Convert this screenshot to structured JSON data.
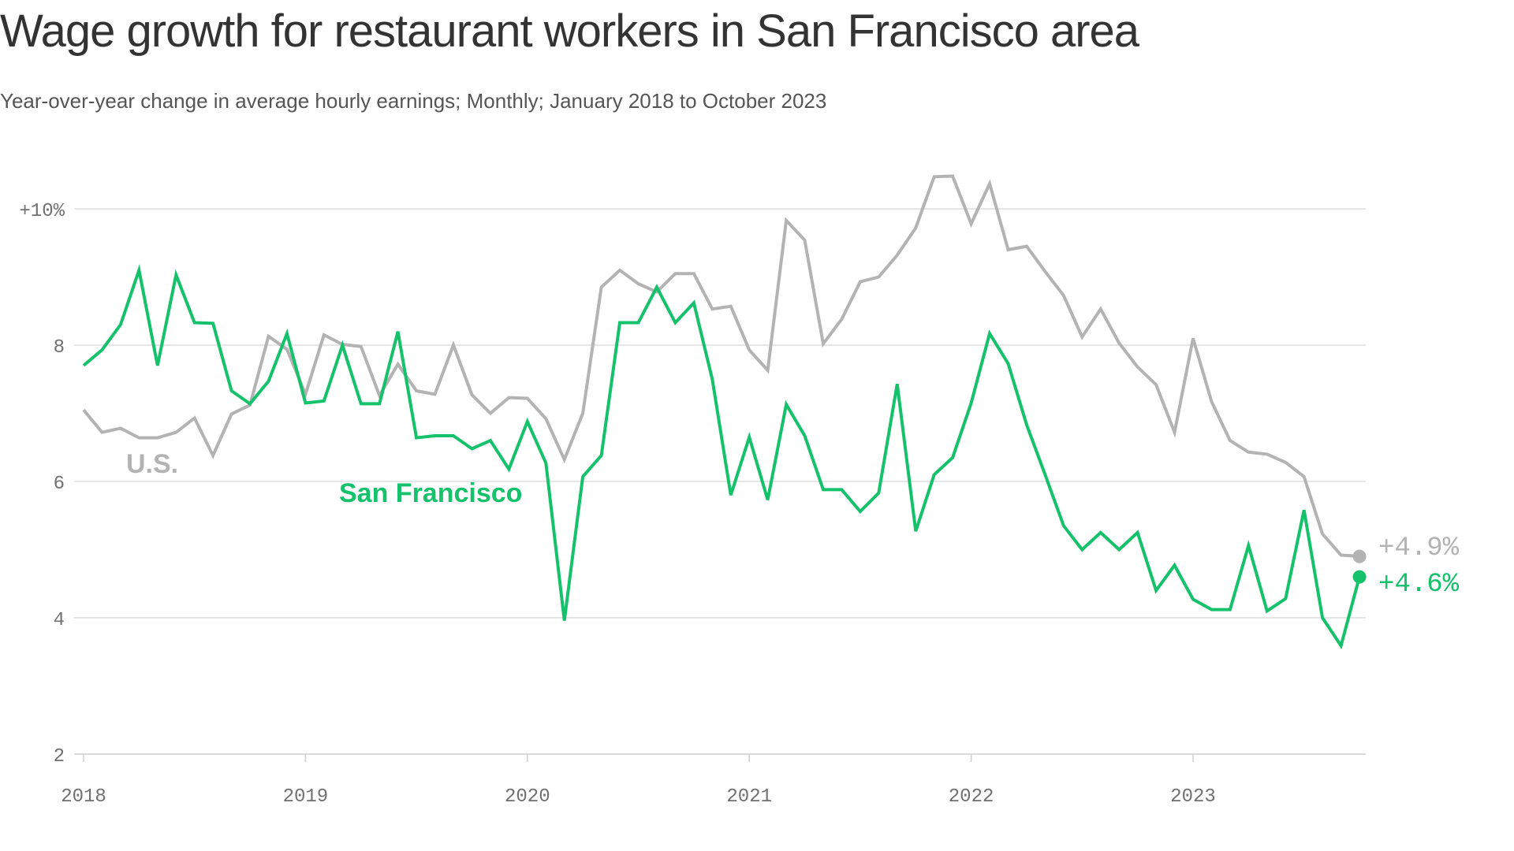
{
  "header": {
    "title": "Wage growth for restaurant workers in San Francisco area",
    "subtitle": "Year-over-year change in average hourly earnings; Monthly; January 2018 to October 2023"
  },
  "colors": {
    "us": "#b3b3b3",
    "sf": "#15c26b",
    "grid": "#dddddd",
    "axis_text": "#707070",
    "title": "#333333",
    "subtitle": "#555555"
  },
  "chart_data": {
    "type": "line",
    "title": "Wage growth for restaurant workers in San Francisco area",
    "subtitle": "Year-over-year change in average hourly earnings; Monthly; January 2018 to October 2023",
    "xlabel": "",
    "ylabel": "",
    "x_start": "2018-01",
    "x_end": "2023-10",
    "x_ticks": [
      "2018",
      "2019",
      "2020",
      "2021",
      "2022",
      "2023"
    ],
    "y_ticks": [
      "2",
      "4",
      "6",
      "8",
      "+10%"
    ],
    "y_tick_values": [
      2,
      4,
      6,
      8,
      10
    ],
    "ylim": [
      2,
      10.5
    ],
    "grid": "horizontal",
    "series": [
      {
        "name": "U.S.",
        "end_label": "+4.9%",
        "values": [
          7.05,
          6.72,
          6.78,
          6.64,
          6.64,
          6.72,
          6.93,
          6.38,
          6.99,
          7.12,
          8.13,
          7.94,
          7.28,
          8.15,
          8.01,
          7.98,
          7.26,
          7.72,
          7.33,
          7.28,
          8.0,
          7.27,
          7.0,
          7.23,
          7.22,
          6.92,
          6.32,
          7.0,
          8.85,
          9.1,
          8.9,
          8.78,
          9.05,
          9.05,
          8.53,
          8.57,
          7.93,
          7.63,
          9.83,
          9.54,
          8.02,
          8.38,
          8.93,
          9.0,
          9.32,
          9.72,
          10.47,
          10.48,
          9.78,
          10.37,
          9.4,
          9.45,
          9.08,
          8.73,
          8.12,
          8.53,
          8.03,
          7.68,
          7.42,
          6.72,
          8.1,
          7.17,
          6.6,
          6.43,
          6.4,
          6.28,
          6.07,
          5.23,
          4.92,
          4.9
        ]
      },
      {
        "name": "San Francisco",
        "end_label": "+4.6%",
        "values": [
          7.7,
          7.93,
          8.3,
          9.1,
          7.7,
          9.03,
          8.33,
          8.32,
          7.33,
          7.14,
          7.47,
          8.17,
          7.15,
          7.18,
          8.0,
          7.14,
          7.14,
          8.2,
          6.64,
          6.67,
          6.67,
          6.48,
          6.6,
          6.18,
          6.88,
          6.27,
          3.96,
          6.07,
          6.38,
          8.33,
          8.33,
          8.85,
          8.33,
          8.62,
          7.5,
          5.8,
          6.65,
          5.73,
          7.13,
          6.67,
          5.88,
          5.88,
          5.56,
          5.83,
          7.43,
          5.27,
          6.1,
          6.35,
          7.15,
          8.17,
          7.73,
          6.83,
          6.1,
          5.35,
          5.0,
          5.25,
          5.0,
          5.25,
          4.4,
          4.77,
          4.27,
          4.12,
          4.12,
          5.06,
          4.1,
          4.28,
          5.58,
          4.0,
          3.59,
          4.6
        ]
      }
    ],
    "annotations": [
      "U.S.",
      "San Francisco"
    ]
  }
}
